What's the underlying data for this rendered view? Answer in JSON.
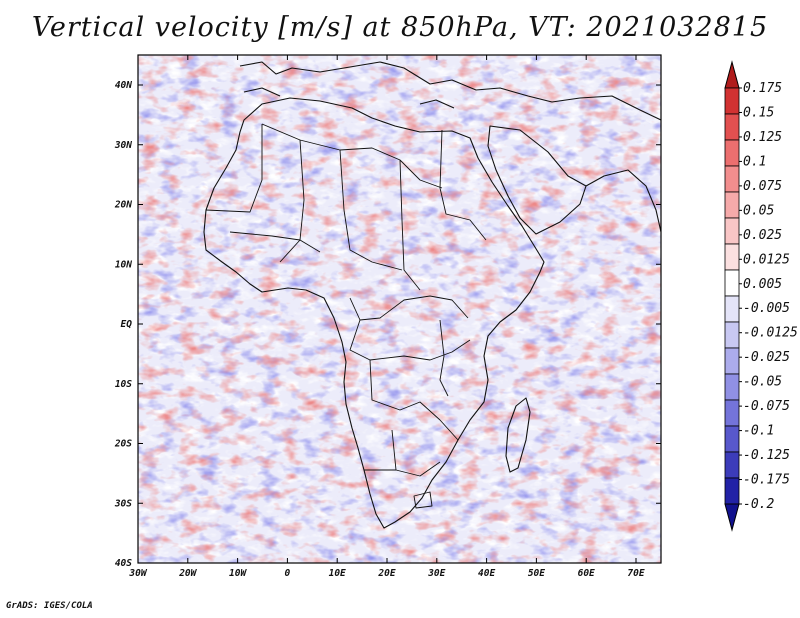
{
  "title": "Vertical velocity [m/s] at 850hPa, VT: 2021032815",
  "footer": "GrADS: IGES/COLA",
  "map": {
    "lat_labels": [
      "40N",
      "30N",
      "20N",
      "10N",
      "EQ",
      "10S",
      "20S",
      "30S",
      "40S"
    ],
    "lon_labels": [
      "30W",
      "20W",
      "10W",
      "0",
      "10E",
      "20E",
      "30E",
      "40E",
      "50E",
      "60E",
      "70E"
    ],
    "lon_range": [
      -30,
      75
    ],
    "lat_range": [
      -40,
      45
    ]
  },
  "colorbar": {
    "levels": [
      "0.175",
      "0.15",
      "0.125",
      "0.1",
      "0.075",
      "0.05",
      "0.025",
      "0.0125",
      "0.005",
      "-0.005",
      "-0.0125",
      "-0.025",
      "-0.05",
      "-0.075",
      "-0.1",
      "-0.125",
      "-0.175",
      "-0.2"
    ],
    "colors": [
      "#b01c1c",
      "#d23232",
      "#e25050",
      "#ec6f6f",
      "#f28e8e",
      "#f6aaaa",
      "#f9c6c6",
      "#fbe0e0",
      "#ffffff",
      "#e4e4f8",
      "#c8c8f2",
      "#acacec",
      "#9090e4",
      "#7474da",
      "#5858cc",
      "#3c3cba",
      "#2222a6",
      "#11118e"
    ]
  }
}
